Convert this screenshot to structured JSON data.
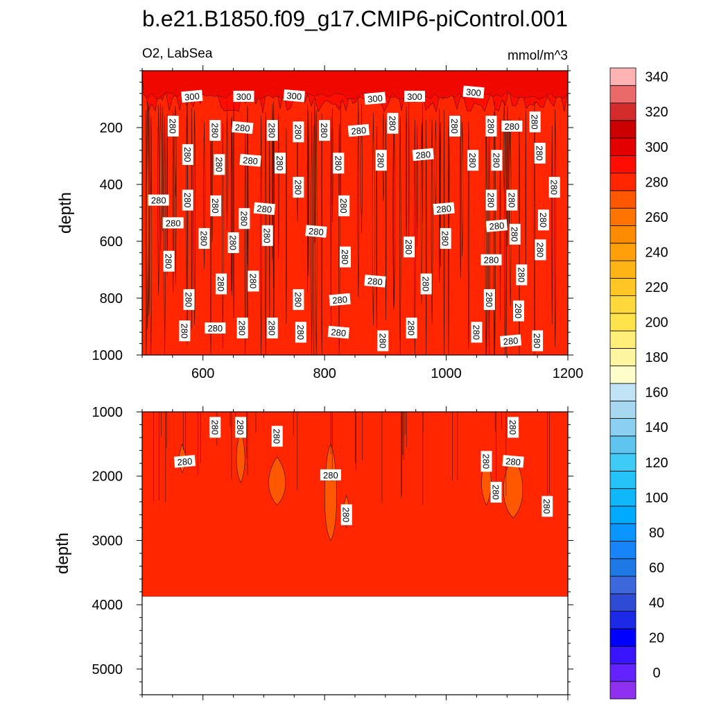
{
  "figure": {
    "title": "b.e21.B1850.f09_g17.CMIP6-piControl.001"
  },
  "chart_data": [
    {
      "type": "heatmap",
      "panel": "upper",
      "title": "",
      "left_string": "O2, LabSea",
      "right_string": "mmol/m^3",
      "xlabel": "",
      "ylabel": "depth",
      "xlim": [
        500,
        1200
      ],
      "ylim": [
        0,
        1000
      ],
      "y_reversed": true,
      "x_ticks": [
        600,
        800,
        1000,
        1200
      ],
      "y_ticks": [
        200,
        400,
        600,
        800,
        1000
      ],
      "field_summary": "Nearly uniform O2 of 280-300 mmol/m^3; a thin layer above ~130 m reaches 300-320; many narrow vertical 280 contour streaks throughout",
      "surface_layer": {
        "depth_bottom": 130,
        "value_range": [
          300,
          320
        ]
      },
      "background_value_range": [
        280,
        300
      ],
      "contour_labels": [
        {
          "x": 582,
          "y": 90,
          "text": "300"
        },
        {
          "x": 667,
          "y": 90,
          "text": "300"
        },
        {
          "x": 750,
          "y": 88,
          "text": "300"
        },
        {
          "x": 883,
          "y": 97,
          "text": "300"
        },
        {
          "x": 948,
          "y": 90,
          "text": "300"
        },
        {
          "x": 1045,
          "y": 75,
          "text": "300"
        },
        {
          "x": 551,
          "y": 195,
          "text": "280"
        },
        {
          "x": 620,
          "y": 210,
          "text": "280"
        },
        {
          "x": 665,
          "y": 200,
          "text": "280"
        },
        {
          "x": 714,
          "y": 210,
          "text": "280"
        },
        {
          "x": 757,
          "y": 215,
          "text": "280"
        },
        {
          "x": 800,
          "y": 210,
          "text": "280"
        },
        {
          "x": 856,
          "y": 210,
          "text": "280"
        },
        {
          "x": 912,
          "y": 185,
          "text": "280"
        },
        {
          "x": 1014,
          "y": 195,
          "text": "280"
        },
        {
          "x": 1074,
          "y": 195,
          "text": "280"
        },
        {
          "x": 1108,
          "y": 195,
          "text": "280"
        },
        {
          "x": 1146,
          "y": 180,
          "text": "280"
        },
        {
          "x": 575,
          "y": 295,
          "text": "280"
        },
        {
          "x": 627,
          "y": 330,
          "text": "280"
        },
        {
          "x": 678,
          "y": 315,
          "text": "280"
        },
        {
          "x": 727,
          "y": 325,
          "text": "280"
        },
        {
          "x": 823,
          "y": 325,
          "text": "280"
        },
        {
          "x": 893,
          "y": 315,
          "text": "280"
        },
        {
          "x": 962,
          "y": 295,
          "text": "280"
        },
        {
          "x": 1044,
          "y": 315,
          "text": "280"
        },
        {
          "x": 1083,
          "y": 315,
          "text": "280"
        },
        {
          "x": 1154,
          "y": 290,
          "text": "280"
        },
        {
          "x": 527,
          "y": 455,
          "text": "280"
        },
        {
          "x": 575,
          "y": 455,
          "text": "280"
        },
        {
          "x": 621,
          "y": 475,
          "text": "280"
        },
        {
          "x": 668,
          "y": 520,
          "text": "280"
        },
        {
          "x": 701,
          "y": 485,
          "text": "280"
        },
        {
          "x": 757,
          "y": 410,
          "text": "280"
        },
        {
          "x": 832,
          "y": 475,
          "text": "280"
        },
        {
          "x": 1178,
          "y": 410,
          "text": "280"
        },
        {
          "x": 996,
          "y": 485,
          "text": "280"
        },
        {
          "x": 1074,
          "y": 455,
          "text": "280"
        },
        {
          "x": 1108,
          "y": 455,
          "text": "280"
        },
        {
          "x": 1160,
          "y": 525,
          "text": "280"
        },
        {
          "x": 551,
          "y": 535,
          "text": "280"
        },
        {
          "x": 602,
          "y": 590,
          "text": "280"
        },
        {
          "x": 650,
          "y": 605,
          "text": "280"
        },
        {
          "x": 706,
          "y": 580,
          "text": "280"
        },
        {
          "x": 786,
          "y": 565,
          "text": "280"
        },
        {
          "x": 834,
          "y": 655,
          "text": "280"
        },
        {
          "x": 939,
          "y": 620,
          "text": "280"
        },
        {
          "x": 999,
          "y": 590,
          "text": "280"
        },
        {
          "x": 1083,
          "y": 545,
          "text": "280"
        },
        {
          "x": 1113,
          "y": 575,
          "text": "280"
        },
        {
          "x": 1155,
          "y": 630,
          "text": "280"
        },
        {
          "x": 544,
          "y": 670,
          "text": "280"
        },
        {
          "x": 1074,
          "y": 665,
          "text": "280"
        },
        {
          "x": 1124,
          "y": 718,
          "text": "280"
        },
        {
          "x": 630,
          "y": 750,
          "text": "280"
        },
        {
          "x": 683,
          "y": 740,
          "text": "280"
        },
        {
          "x": 883,
          "y": 740,
          "text": "280"
        },
        {
          "x": 967,
          "y": 750,
          "text": "280"
        },
        {
          "x": 577,
          "y": 805,
          "text": "280"
        },
        {
          "x": 757,
          "y": 805,
          "text": "280"
        },
        {
          "x": 825,
          "y": 805,
          "text": "280"
        },
        {
          "x": 1071,
          "y": 805,
          "text": "280"
        },
        {
          "x": 1119,
          "y": 845,
          "text": "280"
        },
        {
          "x": 570,
          "y": 915,
          "text": "280"
        },
        {
          "x": 620,
          "y": 905,
          "text": "280"
        },
        {
          "x": 665,
          "y": 905,
          "text": "280"
        },
        {
          "x": 714,
          "y": 905,
          "text": "280"
        },
        {
          "x": 761,
          "y": 920,
          "text": "280"
        },
        {
          "x": 823,
          "y": 920,
          "text": "280"
        },
        {
          "x": 896,
          "y": 950,
          "text": "280"
        },
        {
          "x": 943,
          "y": 905,
          "text": "280"
        },
        {
          "x": 1050,
          "y": 920,
          "text": "280"
        },
        {
          "x": 1106,
          "y": 950,
          "text": "280"
        },
        {
          "x": 1150,
          "y": 950,
          "text": "280"
        }
      ]
    },
    {
      "type": "heatmap",
      "panel": "lower",
      "title": "",
      "xlabel": "",
      "ylabel": "depth",
      "xlim": [
        500,
        1200
      ],
      "ylim": [
        1000,
        5400
      ],
      "y_reversed": true,
      "y_ticks": [
        1000,
        2000,
        3000,
        4000,
        5000
      ],
      "field_summary": "Uniform 280-300 mmol/m^3 with slightly lower (260-280) vertical pockets between ~1500 and ~3000 m; no data below ~3870 m",
      "data_bottom_depth": 3870,
      "background_value_range": [
        280,
        300
      ],
      "pocket_value_range": [
        260,
        280
      ],
      "contour_labels": [
        {
          "x": 570,
          "y": 1770,
          "text": "280"
        },
        {
          "x": 620,
          "y": 1240,
          "text": "280"
        },
        {
          "x": 662,
          "y": 1240,
          "text": "280"
        },
        {
          "x": 722,
          "y": 1380,
          "text": "280"
        },
        {
          "x": 810,
          "y": 1980,
          "text": "280"
        },
        {
          "x": 836,
          "y": 2600,
          "text": "280"
        },
        {
          "x": 1110,
          "y": 1240,
          "text": "280"
        },
        {
          "x": 1066,
          "y": 1770,
          "text": "280"
        },
        {
          "x": 1110,
          "y": 1770,
          "text": "280"
        },
        {
          "x": 1082,
          "y": 2250,
          "text": "280"
        },
        {
          "x": 1166,
          "y": 2470,
          "text": "280"
        }
      ]
    },
    {
      "type": "colorbar",
      "levels": [
        0,
        10,
        20,
        30,
        40,
        50,
        60,
        70,
        80,
        90,
        100,
        110,
        120,
        130,
        140,
        150,
        160,
        170,
        180,
        190,
        200,
        210,
        220,
        230,
        240,
        250,
        260,
        270,
        280,
        290,
        300,
        310,
        320,
        330,
        340,
        350
      ],
      "labels": [
        "0",
        "20",
        "40",
        "60",
        "80",
        "100",
        "120",
        "140",
        "160",
        "180",
        "200",
        "220",
        "240",
        "260",
        "280",
        "300",
        "320",
        "340"
      ],
      "colors": [
        "#8f2ff0",
        "#6422ff",
        "#3814ff",
        "#0000ff",
        "#1c2ae8",
        "#2e4bd6",
        "#3b69db",
        "#1e78e6",
        "#1784fa",
        "#0a95ff",
        "#00aaff",
        "#10b7fb",
        "#25c3f8",
        "#3ecbf5",
        "#5fc5ef",
        "#8cd0f1",
        "#a8d8ef",
        "#c0e3f5",
        "#ffffcc",
        "#fff5a0",
        "#ffee78",
        "#ffe34a",
        "#ffd93c",
        "#ffc624",
        "#ffb416",
        "#ffa00a",
        "#ff8c00",
        "#ff7300",
        "#ff5800",
        "#ff2600",
        "#ff0e00",
        "#e50000",
        "#cc0000",
        "#d42b2b",
        "#ea6a6a",
        "#ffb3b3"
      ]
    }
  ]
}
